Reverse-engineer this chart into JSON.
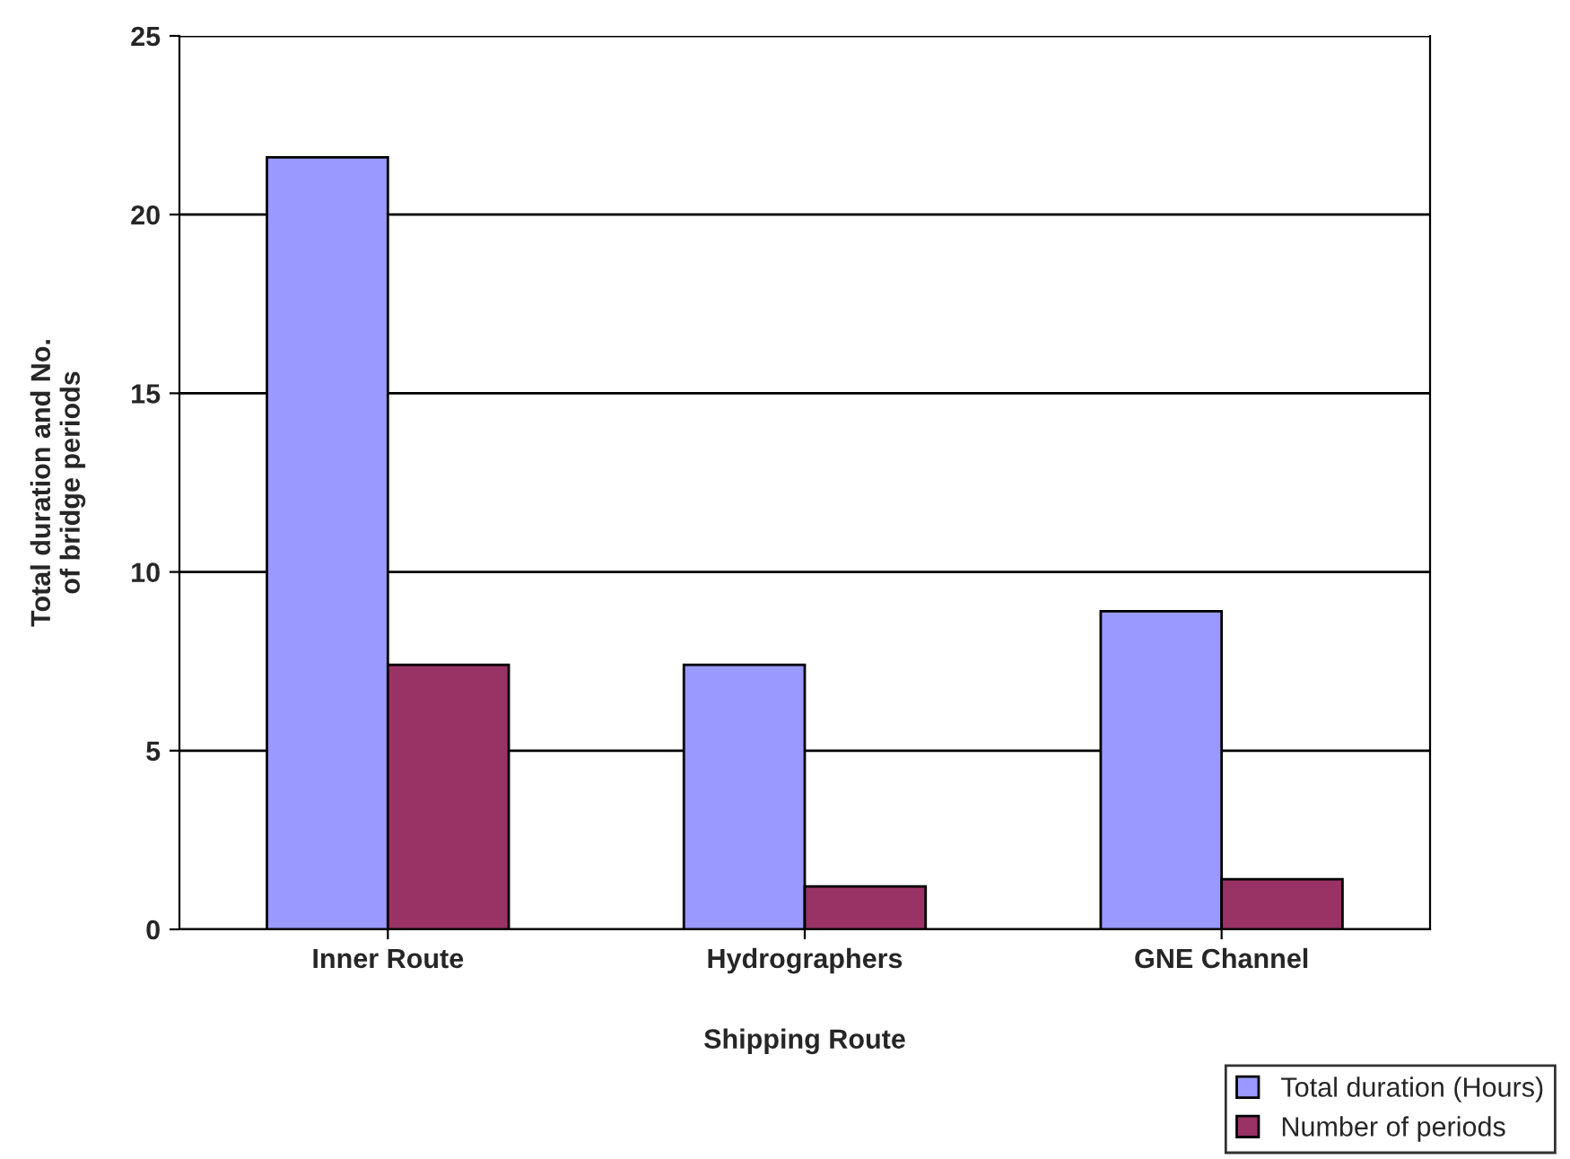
{
  "chart_data": {
    "type": "bar",
    "xlabel": "Shipping Route",
    "ylabel": "Total duration and No.\nof bridge periods",
    "categories": [
      "Inner Route",
      "Hydrographers",
      "GNE Channel"
    ],
    "series": [
      {
        "name": "Total duration (Hours)",
        "color": "#9999ff",
        "values": [
          21.6,
          7.4,
          8.9
        ]
      },
      {
        "name": "Number of periods",
        "color": "#993366",
        "values": [
          7.4,
          1.2,
          1.4
        ]
      }
    ],
    "ylim": [
      0,
      25
    ],
    "yticks": [
      0,
      5,
      10,
      15,
      20,
      25
    ],
    "grid": "y",
    "legend": "bottom right"
  }
}
